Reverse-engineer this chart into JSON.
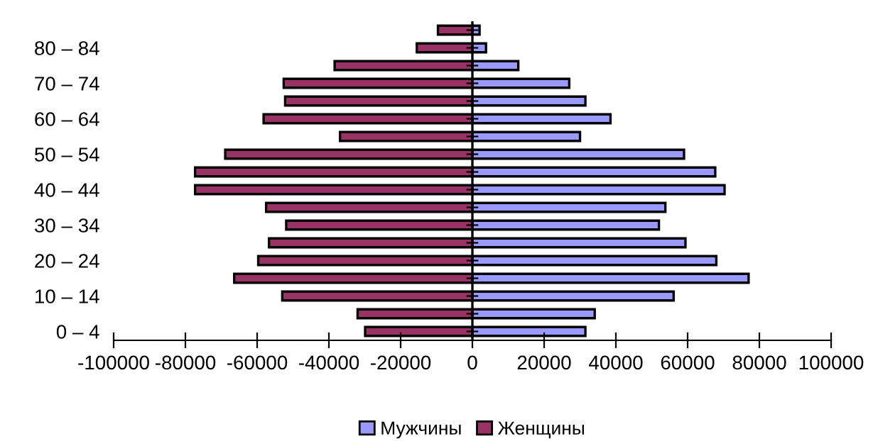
{
  "chart_data": {
    "type": "bar",
    "orientation": "horizontal",
    "categories": [
      null,
      "80 – 84",
      null,
      "70 – 74",
      null,
      "60 – 64",
      null,
      "50 – 54",
      null,
      "40 – 44",
      null,
      "30 – 34",
      null,
      "20 – 24",
      null,
      "10 – 14",
      null,
      "0 – 4"
    ],
    "series": [
      {
        "name": "Мужчины",
        "color": "#9999ff",
        "values": [
          2000,
          3800,
          12800,
          27000,
          31500,
          38500,
          30000,
          59000,
          67700,
          70300,
          53800,
          52000,
          59400,
          68000,
          77000,
          56100,
          34100,
          31500
        ]
      },
      {
        "name": "Женщины",
        "color": "#993366",
        "values": [
          -9600,
          -15500,
          -38400,
          -52600,
          -52200,
          -58200,
          -36900,
          -68900,
          -77300,
          -77300,
          -57500,
          -51900,
          -56700,
          -59700,
          -66400,
          -53000,
          -32000,
          -29900
        ]
      }
    ],
    "xlim": [
      -100000,
      100000
    ],
    "xticks": [
      -100000,
      -80000,
      -60000,
      -40000,
      -20000,
      0,
      20000,
      40000,
      60000,
      80000,
      100000
    ],
    "ref_lines": [
      {
        "axis": "x",
        "value": 0,
        "color": "#000000",
        "line_style": "solid"
      }
    ],
    "stacked": true,
    "grid": false,
    "legend": "bottom"
  }
}
